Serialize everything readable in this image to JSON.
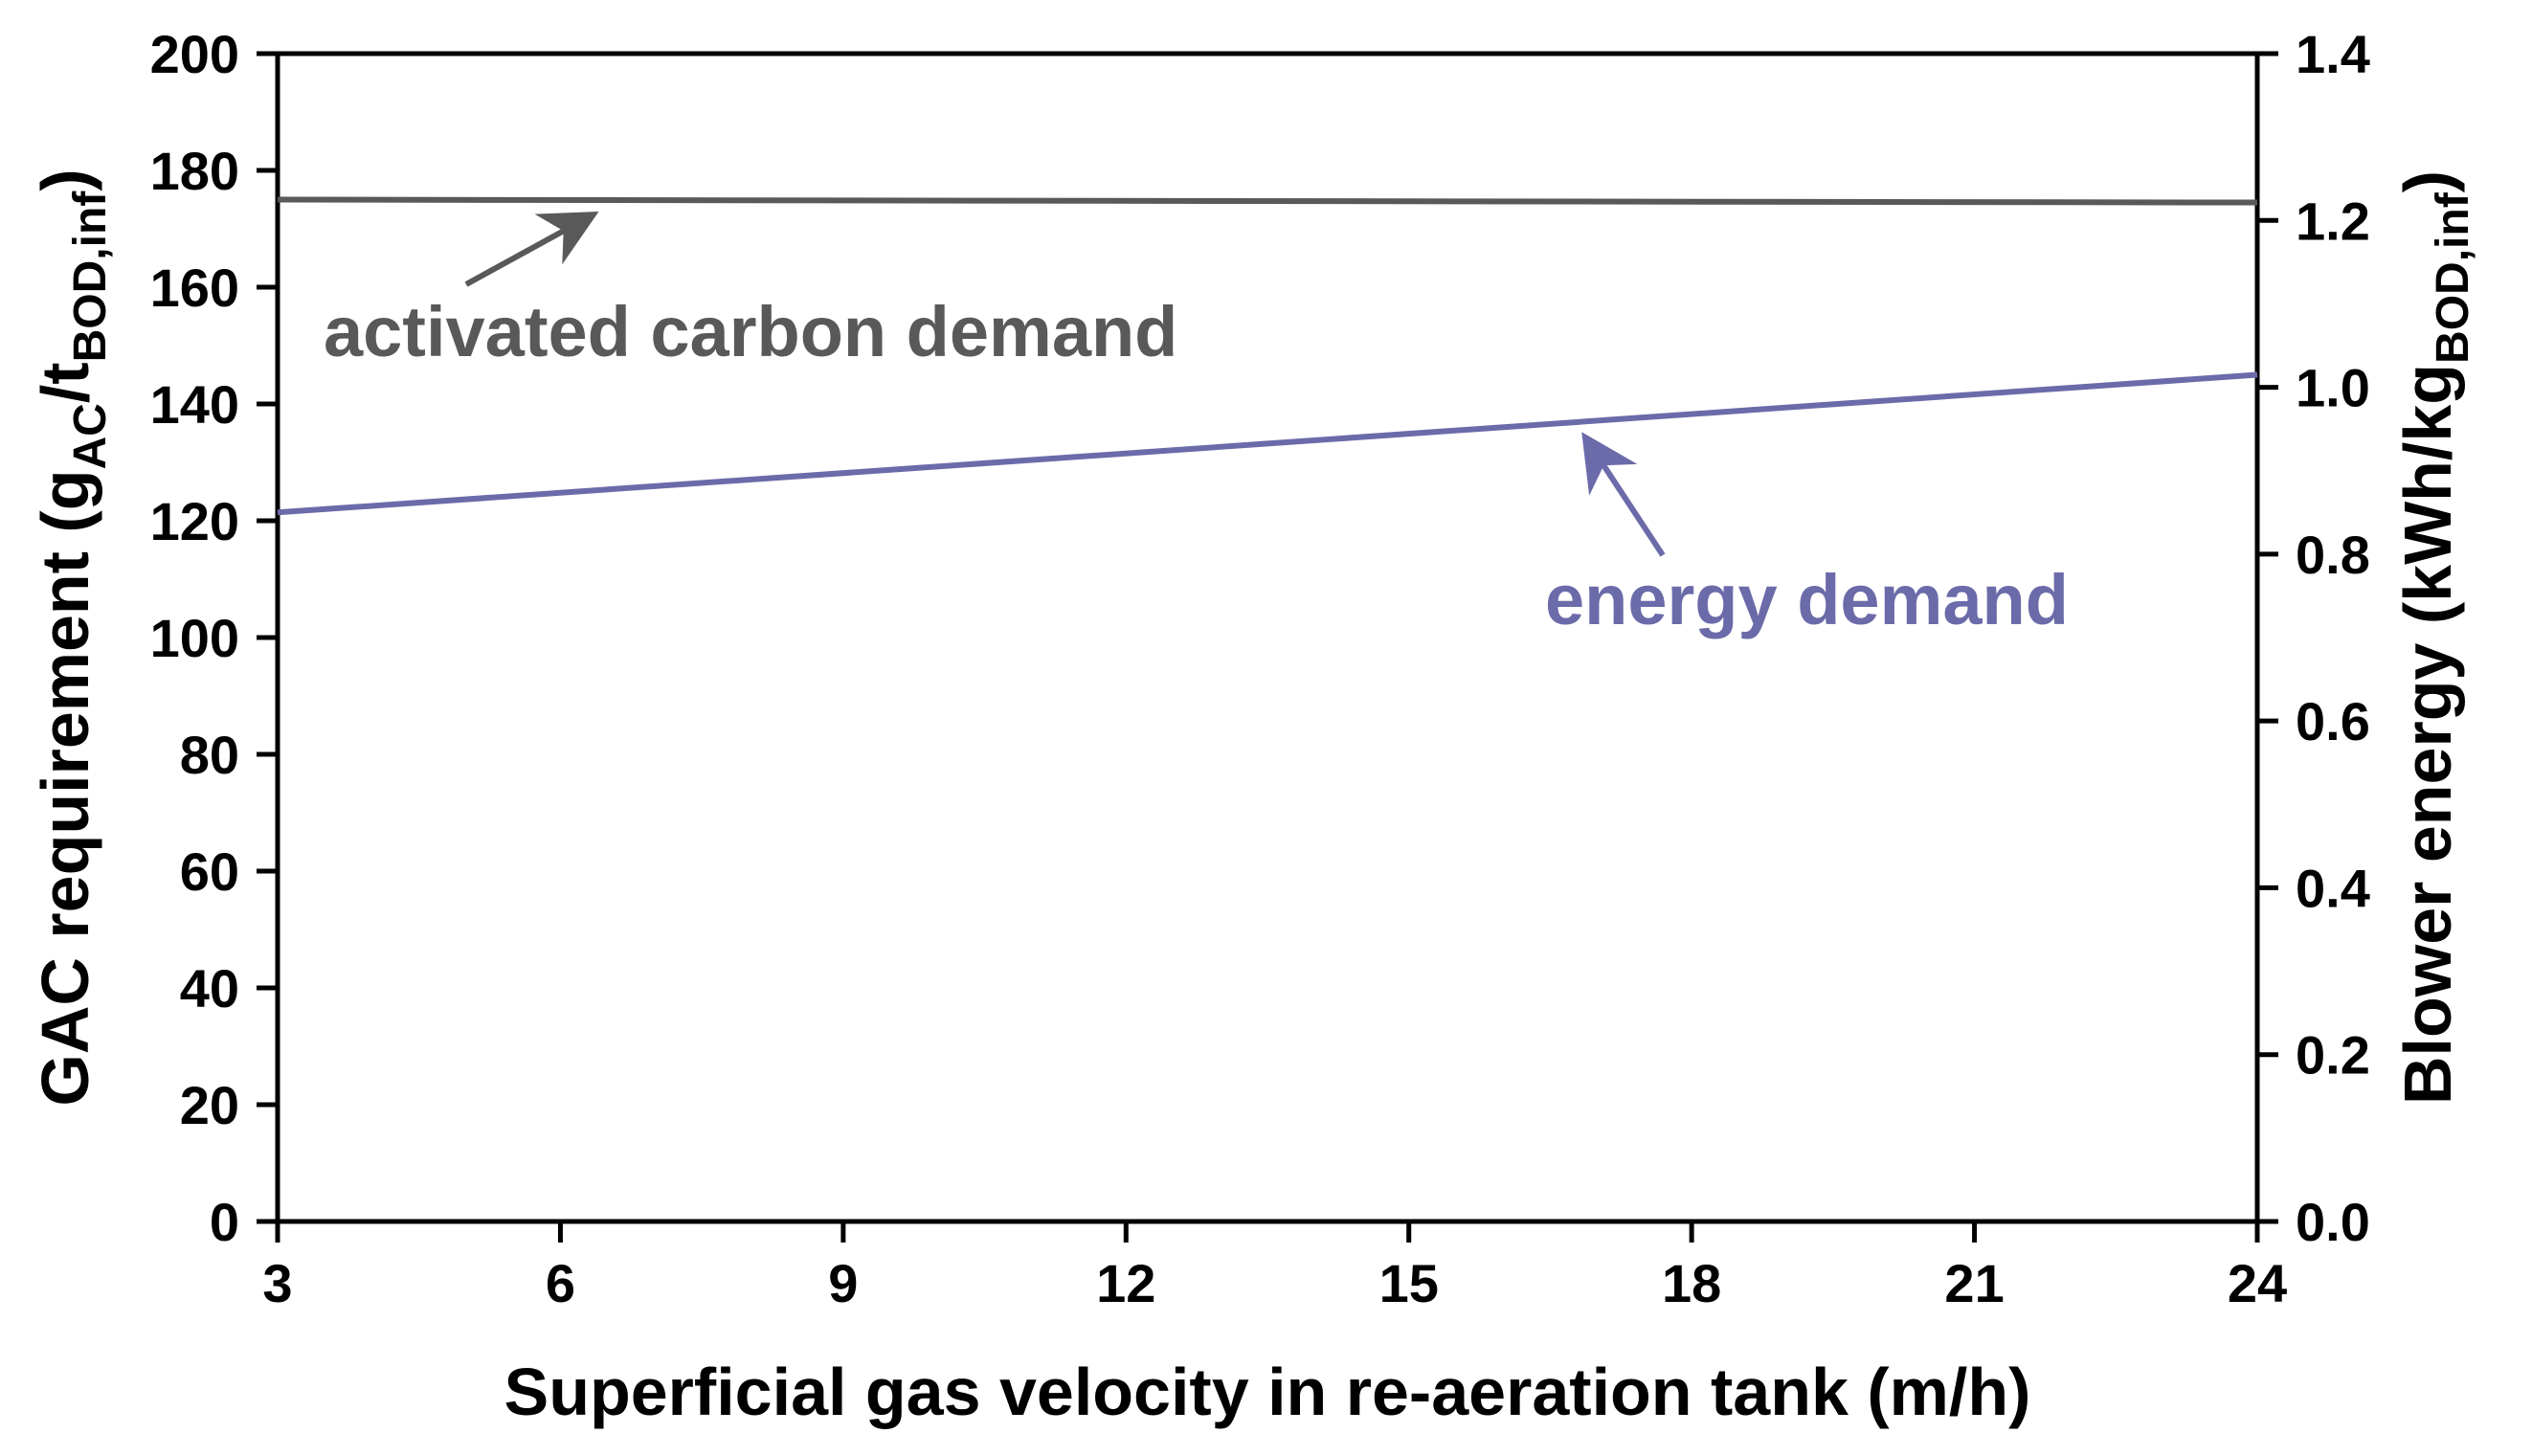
{
  "chart_data": {
    "type": "line",
    "xlabel": "Superficial gas velocity in re-aeration tank (m/h)",
    "ylabel_left": {
      "main": "GAC requirement (g",
      "sub1": "AC",
      "mid": "/t",
      "sub2": "BOD,inf",
      "end": ")"
    },
    "ylabel_right": {
      "main": "Blower energy (kWh/kg",
      "sub": "BOD,inf",
      "end": ")"
    },
    "xlim": [
      3,
      24
    ],
    "ylim_left": [
      0,
      200
    ],
    "ylim_right": [
      0.0,
      1.4
    ],
    "x_ticks": [
      "3",
      "6",
      "9",
      "12",
      "15",
      "18",
      "21",
      "24"
    ],
    "x_tick_values": [
      3,
      6,
      9,
      12,
      15,
      18,
      21,
      24
    ],
    "y_left_ticks": [
      "0",
      "20",
      "40",
      "60",
      "80",
      "100",
      "120",
      "140",
      "160",
      "180",
      "200"
    ],
    "y_left_tick_values": [
      0,
      20,
      40,
      60,
      80,
      100,
      120,
      140,
      160,
      180,
      200
    ],
    "y_right_ticks": [
      "0.0",
      "0.2",
      "0.4",
      "0.6",
      "0.8",
      "1.0",
      "1.2",
      "1.4"
    ],
    "y_right_tick_values": [
      0.0,
      0.2,
      0.4,
      0.6,
      0.8,
      1.0,
      1.2,
      1.4
    ],
    "series": [
      {
        "name": "activated carbon demand",
        "axis": "left",
        "color": "#595959",
        "x": [
          3,
          24
        ],
        "y": [
          175,
          174.5
        ]
      },
      {
        "name": "energy demand",
        "axis": "right",
        "color": "#6B6BAA",
        "x": [
          3,
          24
        ],
        "y": [
          0.85,
          1.015
        ]
      }
    ],
    "annotations": [
      {
        "text": "activated carbon demand",
        "color": "#595959",
        "arrow_target": {
          "x": 6.3,
          "y": 172
        }
      },
      {
        "text": "energy demand",
        "color": "#6B6BAA",
        "arrow_target": {
          "x": 16.9,
          "y_right": 0.935
        }
      }
    ]
  }
}
